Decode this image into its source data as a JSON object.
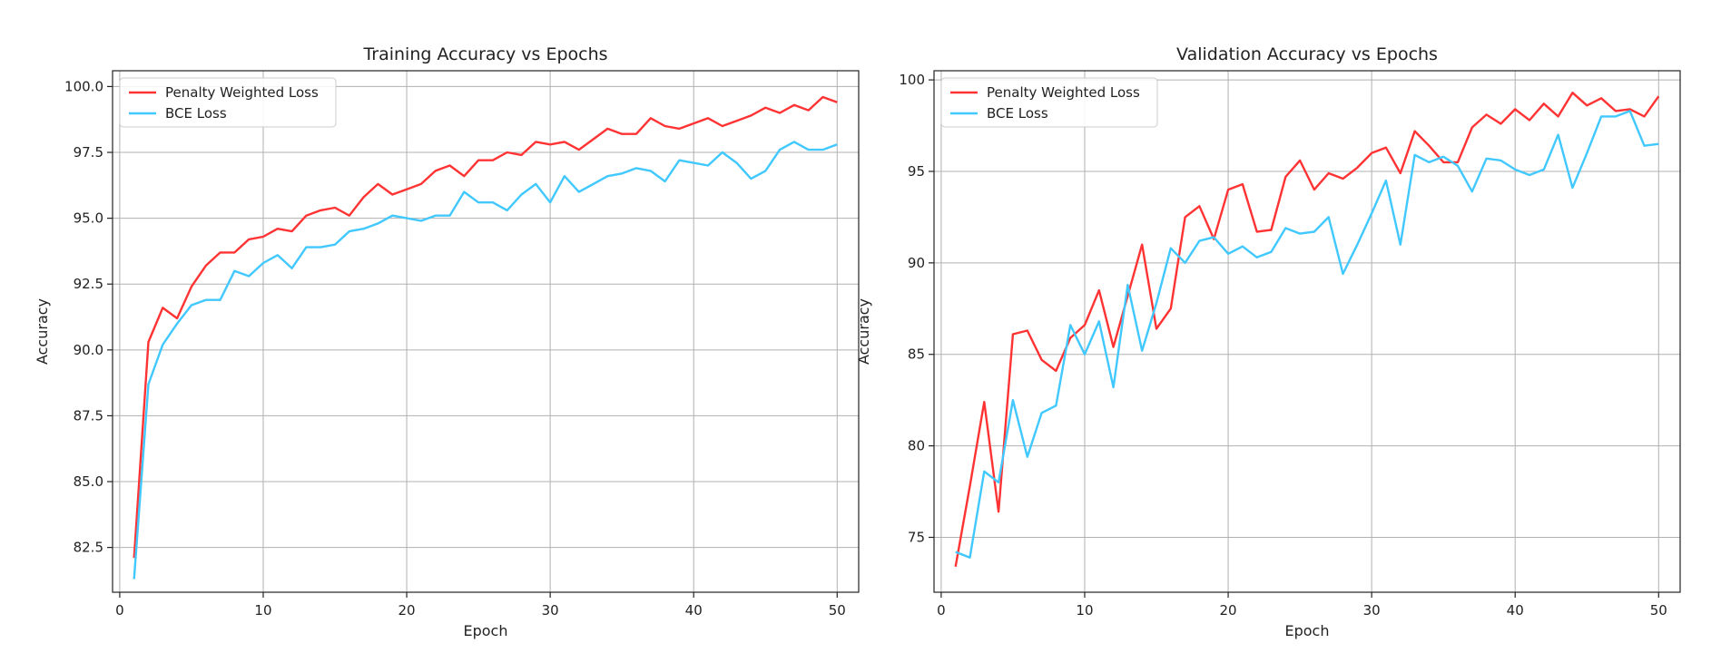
{
  "colors": {
    "penalty": "#ff3333",
    "bce": "#40c8ff"
  },
  "chart_data": [
    {
      "type": "line",
      "title": "Training Accuracy vs Epochs",
      "xlabel": "Epoch",
      "ylabel": "Accuracy",
      "xlim": [
        -0.5,
        51.5
      ],
      "ylim": [
        80.8,
        100.6
      ],
      "xticks": [
        0,
        10,
        20,
        30,
        40,
        50
      ],
      "xtick_labels": [
        "0",
        "10",
        "20",
        "30",
        "40",
        "50"
      ],
      "yticks": [
        82.5,
        85.0,
        87.5,
        90.0,
        92.5,
        95.0,
        97.5,
        100.0
      ],
      "ytick_labels": [
        "82.5",
        "85.0",
        "87.5",
        "90.0",
        "92.5",
        "95.0",
        "97.5",
        "100.0"
      ],
      "grid": true,
      "legend": "top-left",
      "x": [
        1,
        2,
        3,
        4,
        5,
        6,
        7,
        8,
        9,
        10,
        11,
        12,
        13,
        14,
        15,
        16,
        17,
        18,
        19,
        20,
        21,
        22,
        23,
        24,
        25,
        26,
        27,
        28,
        29,
        30,
        31,
        32,
        33,
        34,
        35,
        36,
        37,
        38,
        39,
        40,
        41,
        42,
        43,
        44,
        45,
        46,
        47,
        48,
        49,
        50
      ],
      "series": [
        {
          "name": "Penalty Weighted Loss",
          "color": "#ff3333",
          "values": [
            82.1,
            90.3,
            91.6,
            91.2,
            92.4,
            93.2,
            93.7,
            93.7,
            94.2,
            94.3,
            94.6,
            94.5,
            95.1,
            95.3,
            95.4,
            95.1,
            95.8,
            96.3,
            95.9,
            96.1,
            96.3,
            96.8,
            97.0,
            96.6,
            97.2,
            97.2,
            97.5,
            97.4,
            97.9,
            97.8,
            97.9,
            97.6,
            98.0,
            98.4,
            98.2,
            98.2,
            98.8,
            98.5,
            98.4,
            98.6,
            98.8,
            98.5,
            98.7,
            98.9,
            99.2,
            99.0,
            99.3,
            99.1,
            99.6,
            99.4
          ]
        },
        {
          "name": "BCE Loss",
          "color": "#40c8ff",
          "values": [
            81.3,
            88.7,
            90.2,
            91.0,
            91.7,
            91.9,
            91.9,
            93.0,
            92.8,
            93.3,
            93.6,
            93.1,
            93.9,
            93.9,
            94.0,
            94.5,
            94.6,
            94.8,
            95.1,
            95.0,
            94.9,
            95.1,
            95.1,
            96.0,
            95.6,
            95.6,
            95.3,
            95.9,
            96.3,
            95.6,
            96.6,
            96.0,
            96.3,
            96.6,
            96.7,
            96.9,
            96.8,
            96.4,
            97.2,
            97.1,
            97.0,
            97.5,
            97.1,
            96.5,
            96.8,
            97.6,
            97.9,
            97.6,
            97.6,
            97.8
          ]
        }
      ]
    },
    {
      "type": "line",
      "title": "Validation Accuracy vs Epochs",
      "xlabel": "Epoch",
      "ylabel": "Accuracy",
      "xlim": [
        -0.5,
        51.5
      ],
      "ylim": [
        72.0,
        100.5
      ],
      "xticks": [
        0,
        10,
        20,
        30,
        40,
        50
      ],
      "xtick_labels": [
        "0",
        "10",
        "20",
        "30",
        "40",
        "50"
      ],
      "yticks": [
        75,
        80,
        85,
        90,
        95,
        100
      ],
      "ytick_labels": [
        "75",
        "80",
        "85",
        "90",
        "95",
        "100"
      ],
      "grid": true,
      "legend": "top-left",
      "x": [
        1,
        2,
        3,
        4,
        5,
        6,
        7,
        8,
        9,
        10,
        11,
        12,
        13,
        14,
        15,
        16,
        17,
        18,
        19,
        20,
        21,
        22,
        23,
        24,
        25,
        26,
        27,
        28,
        29,
        30,
        31,
        32,
        33,
        34,
        35,
        36,
        37,
        38,
        39,
        40,
        41,
        42,
        43,
        44,
        45,
        46,
        47,
        48,
        49,
        50
      ],
      "series": [
        {
          "name": "Penalty Weighted Loss",
          "color": "#ff3333",
          "values": [
            73.4,
            77.8,
            82.4,
            76.4,
            86.1,
            86.3,
            84.7,
            84.1,
            85.9,
            86.6,
            88.5,
            85.4,
            88.2,
            91.0,
            86.4,
            87.5,
            92.5,
            93.1,
            91.3,
            94.0,
            94.3,
            91.7,
            91.8,
            94.7,
            95.6,
            94.0,
            94.9,
            94.6,
            95.2,
            96.0,
            96.3,
            94.9,
            97.2,
            96.4,
            95.5,
            95.5,
            97.4,
            98.1,
            97.6,
            98.4,
            97.8,
            98.7,
            98.0,
            99.3,
            98.6,
            99.0,
            98.3,
            98.4,
            98.0,
            99.1
          ]
        },
        {
          "name": "BCE Loss",
          "color": "#40c8ff",
          "values": [
            74.2,
            73.9,
            78.6,
            78.0,
            82.5,
            79.4,
            81.8,
            82.2,
            86.6,
            85.0,
            86.8,
            83.2,
            88.8,
            85.2,
            87.8,
            90.8,
            90.0,
            91.2,
            91.4,
            90.5,
            90.9,
            90.3,
            90.6,
            91.9,
            91.6,
            91.7,
            92.5,
            89.4,
            91.0,
            92.7,
            94.5,
            91.0,
            95.9,
            95.5,
            95.8,
            95.3,
            93.9,
            95.7,
            95.6,
            95.1,
            94.8,
            95.1,
            97.0,
            94.1,
            96.0,
            98.0,
            98.0,
            98.3,
            96.4,
            96.5
          ]
        }
      ]
    }
  ]
}
